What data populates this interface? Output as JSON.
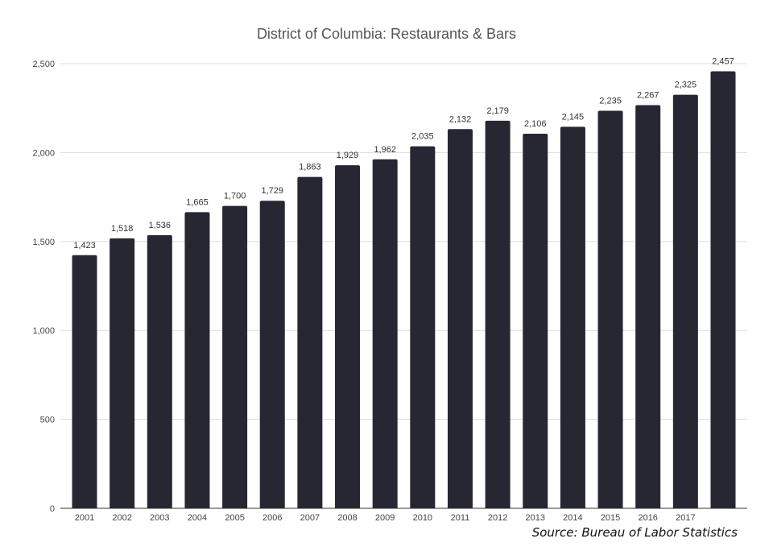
{
  "chart_data": {
    "type": "bar",
    "title": "District of Columbia: Restaurants & Bars",
    "xlabel": "",
    "ylabel": "",
    "categories": [
      "2001",
      "2002",
      "2003",
      "2004",
      "2005",
      "2006",
      "2007",
      "2008",
      "2009",
      "2010",
      "2011",
      "2012",
      "2013",
      "2014",
      "2015",
      "2016",
      "2017",
      ""
    ],
    "values": [
      1423,
      1518,
      1536,
      1665,
      1700,
      1729,
      1863,
      1929,
      1962,
      2035,
      2132,
      2179,
      2106,
      2145,
      2235,
      2267,
      2325,
      2457
    ],
    "data_labels": [
      "1,423",
      "1,518",
      "1,536",
      "1,665",
      "1,700",
      "1,729",
      "1,863",
      "1,929",
      "1,962",
      "2,035",
      "2,132",
      "2,179",
      "2,106",
      "2,145",
      "2,235",
      "2,267",
      "2,325",
      "2,457"
    ],
    "yticks": [
      0,
      500,
      1000,
      1500,
      2000,
      2500
    ],
    "ytick_labels": [
      "0",
      "500",
      "1,000",
      "1,500",
      "2,000",
      "2,500"
    ],
    "ylim": [
      0,
      2500
    ],
    "grid": true,
    "legend": "none",
    "bar_color": "#262733"
  },
  "source": "Source: Bureau of Labor Statistics"
}
